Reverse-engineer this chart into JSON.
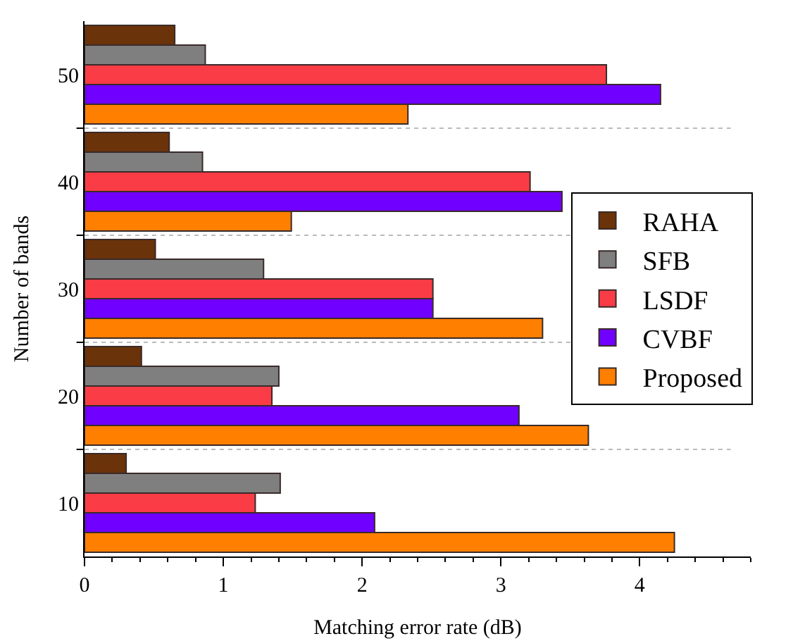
{
  "chart_data": {
    "type": "bar",
    "orientation": "horizontal",
    "xlabel": "Matching error rate (dB)",
    "ylabel": "Number of bands",
    "categories": [
      "50",
      "40",
      "30",
      "20",
      "10"
    ],
    "series": [
      {
        "name": "RAHA",
        "color": "#6b3309",
        "values": [
          0.65,
          0.61,
          0.51,
          0.41,
          0.3
        ]
      },
      {
        "name": "SFB",
        "color": "#7f7f7f",
        "values": [
          0.87,
          0.85,
          1.29,
          1.4,
          1.41
        ]
      },
      {
        "name": "LSDF",
        "color": "#fa3c46",
        "values": [
          3.76,
          3.21,
          2.51,
          1.35,
          1.23
        ]
      },
      {
        "name": "CVBF",
        "color": "#7000ff",
        "values": [
          4.15,
          3.44,
          2.51,
          3.13,
          2.09
        ]
      },
      {
        "name": "Proposed",
        "color": "#ff7f00",
        "values": [
          2.33,
          1.49,
          3.3,
          3.63,
          4.25
        ]
      }
    ],
    "xlim": [
      0,
      4.8
    ],
    "xticks": [
      0,
      1,
      2,
      3,
      4
    ],
    "grid": "y",
    "legend": "right"
  }
}
